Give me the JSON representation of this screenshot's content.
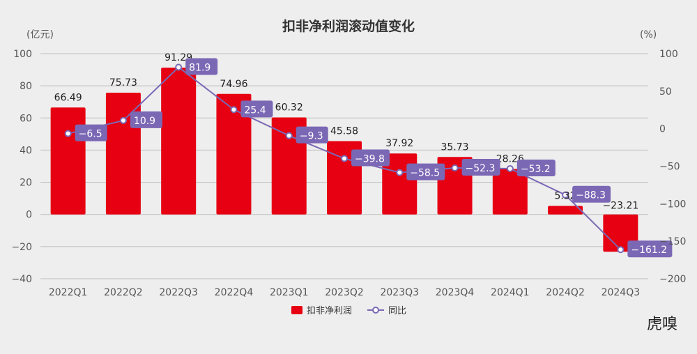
{
  "chart_data": {
    "type": "bar+line",
    "title": "扣非净利润滚动值变化",
    "left_unit": "(亿元)",
    "right_unit": "(%)",
    "categories": [
      "2022Q1",
      "2022Q2",
      "2022Q3",
      "2022Q4",
      "2023Q1",
      "2023Q2",
      "2023Q3",
      "2023Q4",
      "2024Q1",
      "2024Q2",
      "2024Q3"
    ],
    "series": [
      {
        "name": "扣非净利润",
        "type": "bar",
        "axis": "left",
        "color": "#e60012",
        "values": [
          66.49,
          75.73,
          91.29,
          74.96,
          60.32,
          45.58,
          37.92,
          35.73,
          28.26,
          5.32,
          -23.21
        ],
        "labels": [
          "66.49",
          "75.73",
          "91.29",
          "74.96",
          "60.32",
          "45.58",
          "37.92",
          "35.73",
          "28.26",
          "5.32",
          "−23.21"
        ]
      },
      {
        "name": "同比",
        "type": "line",
        "axis": "right",
        "color": "#7b68b5",
        "values": [
          -6.5,
          10.9,
          81.9,
          25.4,
          -9.3,
          -39.8,
          -58.5,
          -52.3,
          -53.2,
          -88.3,
          -161.2
        ],
        "labels": [
          "−6.5",
          "10.9",
          "81.9",
          "25.4",
          "−9.3",
          "−39.8",
          "−58.5",
          "−52.3",
          "−53.2",
          "−88.3",
          "−161.2"
        ]
      }
    ],
    "left_axis": {
      "range": [
        -40,
        100
      ],
      "ticks": [
        "100",
        "80",
        "60",
        "40",
        "20",
        "0",
        "−20",
        "−40"
      ]
    },
    "right_axis": {
      "range": [
        -200,
        100
      ],
      "ticks": [
        "100",
        "50",
        "0",
        "−50",
        "−100",
        "−150",
        "−200"
      ]
    },
    "grid": true,
    "legend": "bottom-center"
  },
  "watermark": "虎嗅"
}
